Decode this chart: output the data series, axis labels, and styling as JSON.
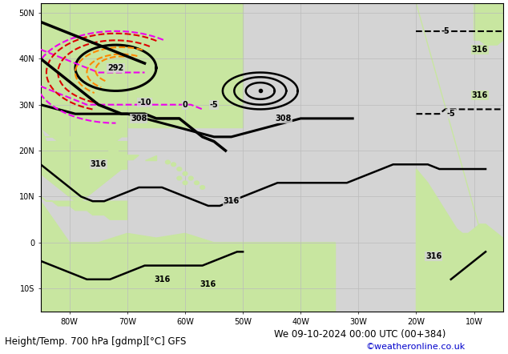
{
  "title_left": "Height/Temp. 700 hPa [gdmp][°C] GFS",
  "title_right": "We 09-10-2024 00:00 UTC (00+384)",
  "credit": "©weatheronline.co.uk",
  "background_land": "#c8e6a0",
  "background_sea": "#d4d4d4",
  "grid_color": "#bbbbbb",
  "lc": "#000000",
  "tc_orange": "#ff8800",
  "tc_magenta": "#ee00ee",
  "tc_red": "#dd0000",
  "title_fontsize": 8.5,
  "credit_fontsize": 8,
  "credit_color": "#0000cc",
  "xlim": [
    -85,
    -5
  ],
  "ylim": [
    -15,
    52
  ],
  "xticks": [
    -80,
    -70,
    -60,
    -50,
    -40,
    -30,
    -20,
    -10
  ],
  "xtick_labels": [
    "80W",
    "70W",
    "60W",
    "50W",
    "40W",
    "30W",
    "20W",
    "10W"
  ],
  "yticks": [
    -10,
    0,
    10,
    20,
    30,
    40,
    50
  ],
  "ytick_labels": [
    "10S",
    "0",
    "10N",
    "20N",
    "30N",
    "40N",
    "50N"
  ],
  "coast_color": "#888888",
  "coast_lw": 0.5
}
